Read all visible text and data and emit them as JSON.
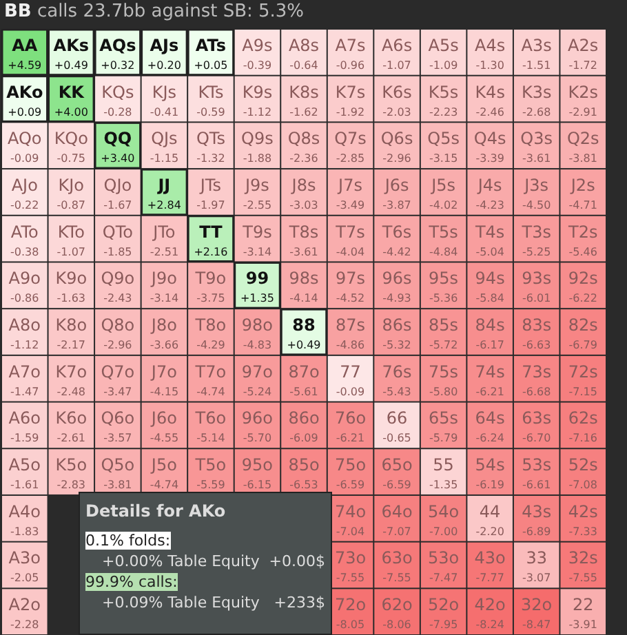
{
  "chart_data": {
    "type": "heatmap",
    "title": "BB calls 23.7bb against SB: 5.3%",
    "categories": [
      null,
      null,
      null,
      null,
      null,
      null,
      null,
      null,
      null,
      null,
      null,
      null,
      null
    ],
    "y_categories": [
      null,
      null,
      null,
      null,
      null,
      null,
      null,
      null,
      null,
      null,
      null,
      null,
      null
    ],
    "data_labels": true,
    "cells": [
      [
        4.59,
        0.49,
        0.32,
        0.2,
        0.05,
        -0.39,
        -0.64,
        -0.96,
        -1.07,
        -1.09,
        -1.3,
        -1.51,
        -1.72
      ],
      [
        0.09,
        4.0,
        -0.28,
        -0.41,
        -0.59,
        -1.12,
        -1.62,
        -1.92,
        -2.03,
        -2.23,
        -2.46,
        -2.68,
        -2.91
      ],
      [
        -0.09,
        -0.75,
        3.4,
        -1.15,
        -1.32,
        -1.88,
        -2.36,
        -2.85,
        -2.96,
        -3.15,
        -3.39,
        -3.61,
        -3.81
      ],
      [
        -0.22,
        -0.87,
        -1.67,
        2.84,
        -1.97,
        -2.55,
        -3.03,
        -3.49,
        -3.87,
        -4.02,
        -4.23,
        -4.5,
        -4.71
      ],
      [
        -0.38,
        -1.07,
        -1.85,
        -2.51,
        2.16,
        -3.14,
        -3.61,
        -4.04,
        -4.42,
        -4.84,
        -5.04,
        -5.25,
        -5.46
      ],
      [
        -0.86,
        -1.63,
        -2.43,
        -3.14,
        -3.75,
        1.35,
        -4.14,
        -4.52,
        -4.93,
        -5.36,
        -5.84,
        -6.01,
        -6.22
      ],
      [
        -1.12,
        -2.17,
        -2.96,
        -3.66,
        -4.29,
        -4.83,
        0.49,
        -4.86,
        -5.32,
        -5.72,
        -6.17,
        -6.63,
        -6.79
      ],
      [
        -1.47,
        -2.48,
        -3.47,
        -4.15,
        -4.74,
        -5.24,
        -5.61,
        -0.09,
        -5.43,
        -5.8,
        -6.21,
        -6.68,
        -7.15
      ],
      [
        -1.59,
        -2.61,
        -3.57,
        -4.55,
        -5.14,
        -5.7,
        -6.09,
        -6.21,
        -0.65,
        -5.79,
        -6.24,
        -6.7,
        -7.16
      ],
      [
        -1.61,
        -2.83,
        -3.81,
        -4.74,
        -5.59,
        -6.15,
        -6.53,
        -6.59,
        -6.59,
        -1.35,
        -6.19,
        -6.61,
        -7.08
      ],
      [
        -1.83,
        null,
        null,
        null,
        null,
        null,
        null,
        -7.04,
        -7.07,
        -7.0,
        -2.2,
        -6.89,
        -7.33
      ],
      [
        -2.05,
        null,
        null,
        null,
        null,
        null,
        null,
        -7.55,
        -7.55,
        -7.47,
        -7.77,
        -3.07,
        -7.55
      ],
      [
        -2.28,
        null,
        null,
        null,
        null,
        null,
        null,
        -8.05,
        -8.06,
        -7.95,
        -8.24,
        -8.47,
        -3.91
      ]
    ],
    "cell_labels": [
      [
        "+4.59",
        "+0.49",
        "+0.32",
        "+0.20",
        "+0.05",
        "-0.39",
        "-0.64",
        "-0.96",
        "-1.07",
        "-1.09",
        "-1.30",
        "-1.51",
        "-1.72"
      ],
      [
        "+0.09",
        "+4.00",
        "-0.28",
        "-0.41",
        "-0.59",
        "-1.12",
        "-1.62",
        "-1.92",
        "-2.03",
        "-2.23",
        "-2.46",
        "-2.68",
        "-2.91"
      ],
      [
        "-0.09",
        "-0.75",
        "+3.40",
        "-1.15",
        "-1.32",
        "-1.88",
        "-2.36",
        "-2.85",
        "-2.96",
        "-3.15",
        "-3.39",
        "-3.61",
        "-3.81"
      ],
      [
        "-0.22",
        "-0.87",
        "-1.67",
        "+2.84",
        "-1.97",
        "-2.55",
        "-3.03",
        "-3.49",
        "-3.87",
        "-4.02",
        "-4.23",
        "-4.50",
        "-4.71"
      ],
      [
        "-0.38",
        "-1.07",
        "-1.85",
        "-2.51",
        "+2.16",
        "-3.14",
        "-3.61",
        "-4.04",
        "-4.42",
        "-4.84",
        "-5.04",
        "-5.25",
        "-5.46"
      ],
      [
        "-0.86",
        "-1.63",
        "-2.43",
        "-3.14",
        "-3.75",
        "+1.35",
        "-4.14",
        "-4.52",
        "-4.93",
        "-5.36",
        "-5.84",
        "-6.01",
        "-6.22"
      ],
      [
        "-1.12",
        "-2.17",
        "-2.96",
        "-3.66",
        "-4.29",
        "-4.83",
        "+0.49",
        "-4.86",
        "-5.32",
        "-5.72",
        "-6.17",
        "-6.63",
        "-6.79"
      ],
      [
        "-1.47",
        "-2.48",
        "-3.47",
        "-4.15",
        "-4.74",
        "-5.24",
        "-5.61",
        "-0.09",
        "-5.43",
        "-5.80",
        "-6.21",
        "-6.68",
        "-7.15"
      ],
      [
        "-1.59",
        "-2.61",
        "-3.57",
        "-4.55",
        "-5.14",
        "-5.70",
        "-6.09",
        "-6.21",
        "-0.65",
        "-5.79",
        "-6.24",
        "-6.70",
        "-7.16"
      ],
      [
        "-1.61",
        "-2.83",
        "-3.81",
        "-4.74",
        "-5.59",
        "-6.15",
        "-6.53",
        "-6.59",
        "-6.59",
        "-1.35",
        "-6.19",
        "-6.61",
        "-7.08"
      ],
      [
        "-1.83",
        null,
        null,
        null,
        null,
        null,
        null,
        "-7.04",
        "-7.07",
        "-7.00",
        "-2.20",
        "-6.89",
        "-7.33"
      ],
      [
        "-2.05",
        null,
        null,
        null,
        null,
        null,
        null,
        "-7.55",
        "-7.55",
        "-7.47",
        "-7.77",
        "-3.07",
        "-7.55"
      ],
      [
        "-2.28",
        null,
        null,
        null,
        null,
        null,
        null,
        "-8.05",
        "-8.06",
        "-7.95",
        "-8.24",
        "-8.47",
        "-3.91"
      ]
    ],
    "annotations": [
      "AA",
      "AKs",
      "AQs",
      "AJs",
      "ATs",
      "A9s",
      "A8s",
      "A7s",
      "A6s",
      "A5s",
      "A4s",
      "A3s",
      "A2s",
      "AKo",
      "KK",
      "KQs",
      "KJs",
      "KTs",
      "K9s",
      "K8s",
      "K7s",
      "K6s",
      "K5s",
      "K4s",
      "K3s",
      "K2s",
      "AQo",
      "KQo",
      "QQ",
      "QJs",
      "QTs",
      "Q9s",
      "Q8s",
      "Q7s",
      "Q6s",
      "Q5s",
      "Q4s",
      "Q3s",
      "Q2s",
      "AJo",
      "KJo",
      "QJo",
      "JJ",
      "JTs",
      "J9s",
      "J8s",
      "J7s",
      "J6s",
      "J5s",
      "J4s",
      "J3s",
      "J2s",
      "ATo",
      "KTo",
      "QTo",
      "JTo",
      "TT",
      "T9s",
      "T8s",
      "T7s",
      "T6s",
      "T5s",
      "T4s",
      "T3s",
      "T2s",
      "A9o",
      "K9o",
      "Q9o",
      "J9o",
      "T9o",
      "99",
      "98s",
      "97s",
      "96s",
      "95s",
      "94s",
      "93s",
      "92s",
      "A8o",
      "K8o",
      "Q8o",
      "J8o",
      "T8o",
      "98o",
      "88",
      "87s",
      "86s",
      "85s",
      "84s",
      "83s",
      "82s",
      "A7o",
      "K7o",
      "Q7o",
      "J7o",
      "T7o",
      "97o",
      "87o",
      "77",
      "76s",
      "75s",
      "74s",
      "73s",
      "72s",
      "A6o",
      "K6o",
      "Q6o",
      "J6o",
      "T6o",
      "96o",
      "86o",
      "76o",
      "66",
      "65s",
      "64s",
      "63s",
      "62s",
      "A5o",
      "K5o",
      "Q5o",
      "J5o",
      "T5o",
      "95o",
      "85o",
      "75o",
      "65o",
      "55",
      "54s",
      "53s",
      "52s",
      "A4o",
      "74o",
      "64o",
      "54o",
      "44",
      "43s",
      "42s",
      "A3o",
      "73o",
      "63o",
      "53o",
      "43o",
      "33",
      "32s",
      "A2o",
      "72o",
      "62o",
      "52o",
      "42o",
      "32o",
      "22",
      "Details for AKo",
      "0.1% folds:",
      "+0.00% Table Equity",
      "+0.00$",
      "99.9% calls:",
      "+0.09% Table Equity",
      "+233$"
    ]
  }
}
